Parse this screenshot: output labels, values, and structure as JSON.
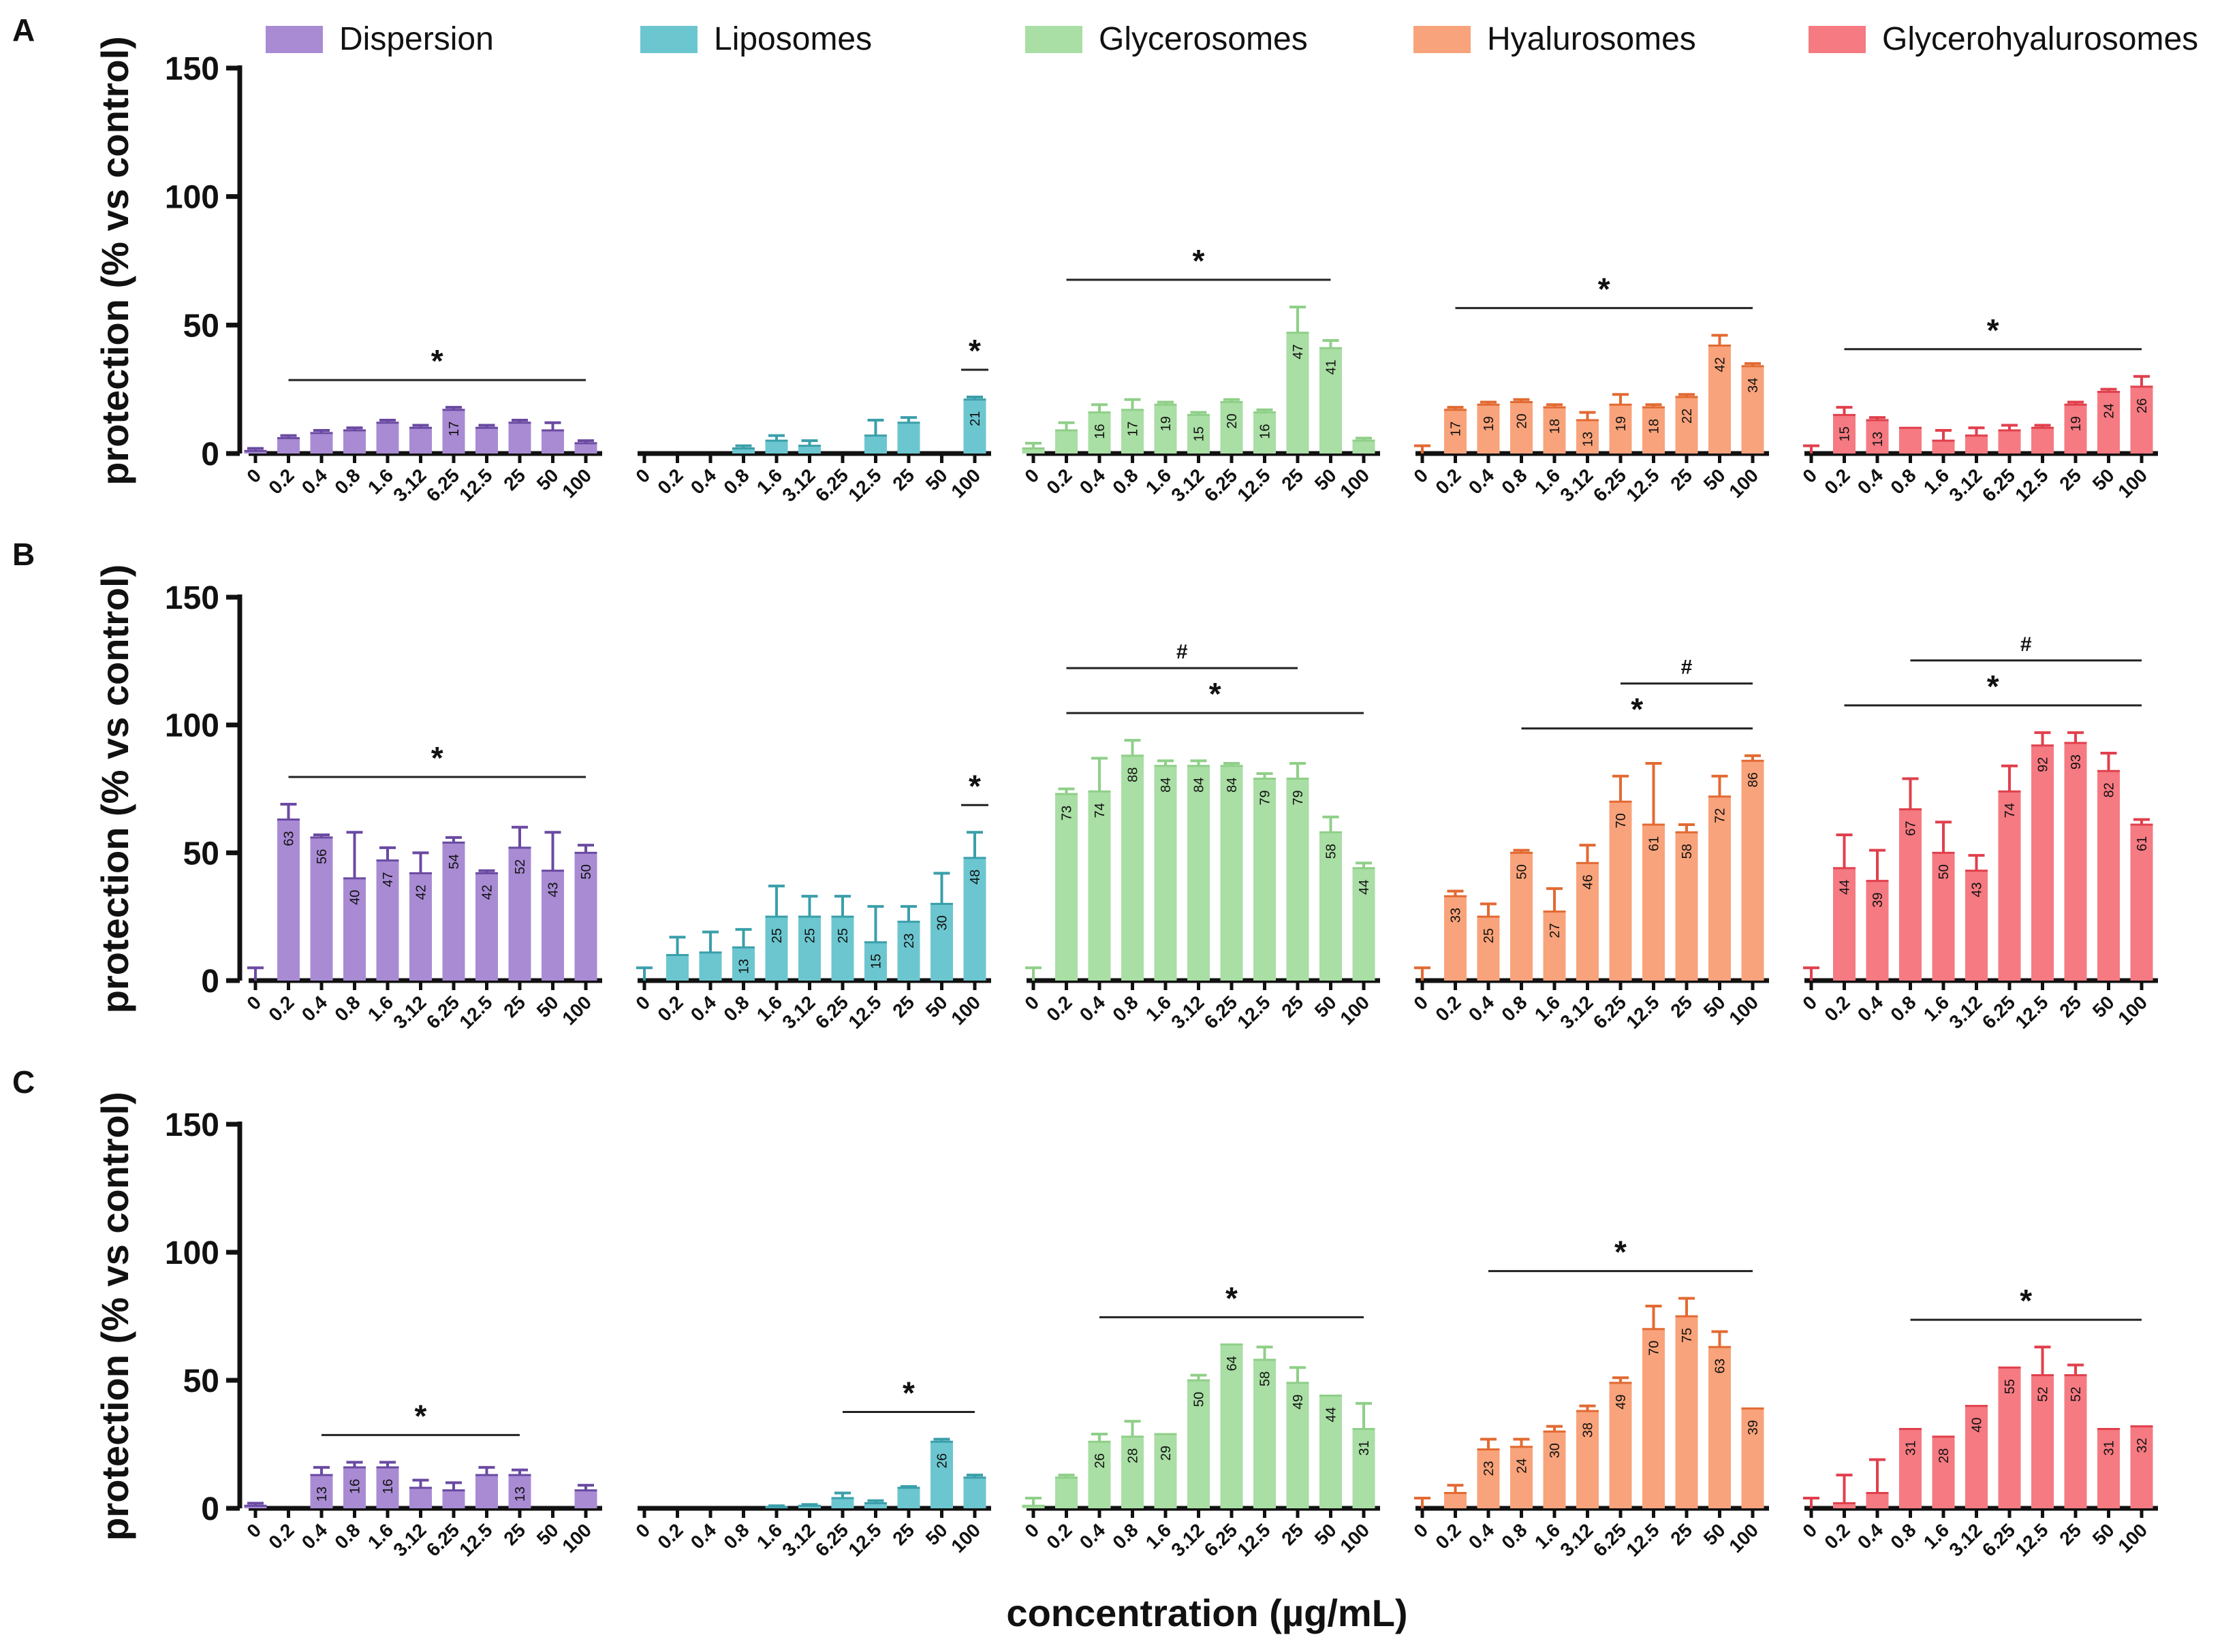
{
  "colors": {
    "Dispersion": "#a98bd4",
    "Liposomes": "#6cc6cf",
    "Glycerosomes": "#a9dea4",
    "Hyalurosomes": "#f8a37b",
    "Glycerohyalurosomes": "#f57a82",
    "Dispersion_err": "#6a4aa2",
    "Liposomes_err": "#3a9faa",
    "Glycerosomes_err": "#8fcf88",
    "Hyalurosomes_err": "#e26a32",
    "Glycerohyalurosomes_err": "#e0404c"
  },
  "legend": [
    "Dispersion",
    "Liposomes",
    "Glycerosomes",
    "Hyalurosomes",
    "Glycerohyalurosomes"
  ],
  "xlabel": "concentration (µg/mL)",
  "chart_data": [
    {
      "type": "bar",
      "panel": "A",
      "ylabel": "protection (% vs control)",
      "ylim": [
        0,
        150
      ],
      "yticks": [
        0,
        50,
        100,
        150
      ],
      "categories": [
        "0",
        "0.2",
        "0.4",
        "0.8",
        "1.6",
        "3.12",
        "6.25",
        "12.5",
        "25",
        "50",
        "100"
      ],
      "series": [
        {
          "name": "Dispersion",
          "values": [
            1,
            6,
            8,
            9,
            12,
            10,
            17,
            10,
            12,
            9,
            4
          ],
          "errors": [
            1,
            1,
            1,
            1,
            1,
            1,
            1,
            1,
            1,
            3,
            1
          ],
          "labels": [
            "",
            "",
            "",
            "",
            "",
            "",
            "17",
            "",
            "",
            "",
            ""
          ],
          "annotations": [
            {
              "text": "*",
              "from": 1,
              "to": 10
            }
          ]
        },
        {
          "name": "Liposomes",
          "values": [
            0,
            0,
            0,
            2,
            5,
            3,
            0,
            7,
            12,
            0,
            21
          ],
          "errors": [
            0,
            0,
            0,
            1,
            2,
            2,
            0,
            6,
            2,
            0,
            1
          ],
          "labels": [
            "",
            "",
            "",
            "",
            "",
            "",
            "",
            "",
            "",
            "",
            "21"
          ],
          "annotations": [
            {
              "text": "*",
              "from": 10,
              "to": 10
            }
          ]
        },
        {
          "name": "Glycerosomes",
          "values": [
            2,
            9,
            16,
            17,
            19,
            15,
            20,
            16,
            47,
            41,
            5
          ],
          "errors": [
            2,
            3,
            3,
            4,
            1,
            1,
            1,
            1,
            10,
            3,
            1
          ],
          "labels": [
            "",
            "",
            "16",
            "17",
            "19",
            "15",
            "20",
            "16",
            "47",
            "41",
            ""
          ],
          "annotations": [
            {
              "text": "*",
              "from": 1,
              "to": 9
            }
          ]
        },
        {
          "name": "Hyalurosomes",
          "values": [
            0,
            17,
            19,
            20,
            18,
            13,
            19,
            18,
            22,
            42,
            34
          ],
          "errors": [
            3,
            1,
            1,
            1,
            1,
            3,
            4,
            1,
            1,
            4,
            1
          ],
          "labels": [
            "",
            "17",
            "19",
            "20",
            "18",
            "13",
            "19",
            "18",
            "22",
            "42",
            "34"
          ],
          "annotations": [
            {
              "text": "*",
              "from": 1,
              "to": 10
            }
          ]
        },
        {
          "name": "Glycerohyalurosomes",
          "values": [
            0,
            15,
            13,
            10,
            5,
            7,
            9,
            10,
            19,
            24,
            26
          ],
          "errors": [
            3,
            3,
            1,
            0,
            4,
            3,
            2,
            1,
            1,
            1,
            4
          ],
          "labels": [
            "",
            "15",
            "13",
            "",
            "",
            "",
            "",
            "",
            "19",
            "24",
            "26"
          ],
          "annotations": [
            {
              "text": "*",
              "from": 1,
              "to": 10
            }
          ]
        }
      ]
    },
    {
      "type": "bar",
      "panel": "B",
      "ylabel": "protection (% vs control)",
      "ylim": [
        0,
        150
      ],
      "yticks": [
        0,
        50,
        100,
        150
      ],
      "categories": [
        "0",
        "0.2",
        "0.4",
        "0.8",
        "1.6",
        "3.12",
        "6.25",
        "12.5",
        "25",
        "50",
        "100"
      ],
      "series": [
        {
          "name": "Dispersion",
          "values": [
            0,
            63,
            56,
            40,
            47,
            42,
            54,
            42,
            52,
            43,
            50
          ],
          "errors": [
            5,
            6,
            1,
            18,
            5,
            8,
            2,
            1,
            8,
            15,
            3
          ],
          "labels": [
            "",
            "63",
            "56",
            "40",
            "47",
            "42",
            "54",
            "42",
            "52",
            "43",
            "50"
          ],
          "annotations": [
            {
              "text": "*",
              "from": 1,
              "to": 10
            }
          ]
        },
        {
          "name": "Liposomes",
          "values": [
            0,
            10,
            11,
            13,
            25,
            25,
            25,
            15,
            23,
            30,
            48
          ],
          "errors": [
            5,
            7,
            8,
            7,
            12,
            8,
            8,
            14,
            6,
            12,
            10
          ],
          "labels": [
            "",
            "",
            "",
            "13",
            "25",
            "25",
            "25",
            "15",
            "23",
            "30",
            "48"
          ],
          "annotations": [
            {
              "text": "*",
              "from": 10,
              "to": 10
            }
          ]
        },
        {
          "name": "Glycerosomes",
          "values": [
            0,
            73,
            74,
            88,
            84,
            84,
            84,
            79,
            79,
            58,
            44
          ],
          "errors": [
            5,
            2,
            13,
            6,
            2,
            2,
            1,
            2,
            6,
            6,
            2
          ],
          "labels": [
            "",
            "73",
            "74",
            "88",
            "84",
            "84",
            "84",
            "79",
            "79",
            "58",
            "44"
          ],
          "annotations": [
            {
              "text": "*",
              "from": 1,
              "to": 10
            },
            {
              "text": "#",
              "from": 1,
              "to": 8
            }
          ]
        },
        {
          "name": "Hyalurosomes",
          "values": [
            0,
            33,
            25,
            50,
            27,
            46,
            70,
            61,
            58,
            72,
            86
          ],
          "errors": [
            5,
            2,
            5,
            1,
            9,
            7,
            10,
            24,
            3,
            8,
            2
          ],
          "labels": [
            "",
            "33",
            "25",
            "50",
            "27",
            "46",
            "70",
            "61",
            "58",
            "72",
            "86"
          ],
          "annotations": [
            {
              "text": "*",
              "from": 3,
              "to": 10
            },
            {
              "text": "#",
              "from": 6,
              "to": 10
            }
          ]
        },
        {
          "name": "Glycerohyalurosomes",
          "values": [
            0,
            44,
            39,
            67,
            50,
            43,
            74,
            92,
            93,
            82,
            61
          ],
          "errors": [
            5,
            13,
            12,
            12,
            12,
            6,
            10,
            5,
            4,
            7,
            2
          ],
          "labels": [
            "",
            "44",
            "39",
            "67",
            "50",
            "43",
            "74",
            "92",
            "93",
            "82",
            "61"
          ],
          "annotations": [
            {
              "text": "*",
              "from": 1,
              "to": 10
            },
            {
              "text": "#",
              "from": 3,
              "to": 10
            }
          ]
        }
      ]
    },
    {
      "type": "bar",
      "panel": "C",
      "ylabel": "protection (% vs control)",
      "ylim": [
        0,
        150
      ],
      "yticks": [
        0,
        50,
        100,
        150
      ],
      "categories": [
        "0",
        "0.2",
        "0.4",
        "0.8",
        "1.6",
        "3.12",
        "6.25",
        "12.5",
        "25",
        "50",
        "100"
      ],
      "series": [
        {
          "name": "Dispersion",
          "values": [
            1,
            0,
            13,
            16,
            16,
            8,
            7,
            13,
            13,
            0,
            7
          ],
          "errors": [
            1,
            0,
            3,
            2,
            2,
            3,
            3,
            3,
            2,
            0,
            2
          ],
          "labels": [
            "",
            "",
            "13",
            "16",
            "16",
            "",
            "",
            "",
            "13",
            "",
            ""
          ],
          "annotations": [
            {
              "text": "*",
              "from": 2,
              "to": 8
            }
          ]
        },
        {
          "name": "Liposomes",
          "values": [
            0,
            0,
            0,
            0,
            0.5,
            1,
            4,
            2,
            8,
            26,
            12
          ],
          "errors": [
            0,
            0,
            0,
            0,
            0.5,
            0.5,
            2,
            1,
            0.5,
            1,
            1
          ],
          "labels": [
            "",
            "",
            "",
            "",
            "",
            "",
            "",
            "",
            "",
            "26",
            ""
          ],
          "annotations": [
            {
              "text": "*",
              "from": 6,
              "to": 10
            }
          ]
        },
        {
          "name": "Glycerosomes",
          "values": [
            1,
            12,
            26,
            28,
            29,
            50,
            64,
            58,
            49,
            44,
            31
          ],
          "errors": [
            3,
            1,
            3,
            6,
            0,
            2,
            0,
            5,
            6,
            0,
            10
          ],
          "labels": [
            "",
            "",
            "26",
            "28",
            "29",
            "50",
            "64",
            "58",
            "49",
            "44",
            "31"
          ],
          "annotations": [
            {
              "text": "*",
              "from": 2,
              "to": 10
            }
          ]
        },
        {
          "name": "Hyalurosomes",
          "values": [
            0,
            6,
            23,
            24,
            30,
            38,
            49,
            70,
            75,
            63,
            39
          ],
          "errors": [
            4,
            3,
            4,
            3,
            2,
            2,
            2,
            9,
            7,
            6,
            0
          ],
          "labels": [
            "",
            "",
            "23",
            "24",
            "30",
            "38",
            "49",
            "70",
            "75",
            "63",
            "39"
          ],
          "annotations": [
            {
              "text": "*",
              "from": 2,
              "to": 10
            }
          ]
        },
        {
          "name": "Glycerohyalurosomes",
          "values": [
            0,
            2,
            6,
            31,
            28,
            40,
            55,
            52,
            52,
            31,
            32
          ],
          "errors": [
            4,
            11,
            13,
            0,
            0,
            0,
            0,
            11,
            4,
            0,
            0
          ],
          "labels": [
            "",
            "",
            "",
            "31",
            "28",
            "40",
            "55",
            "52",
            "52",
            "31",
            "32"
          ],
          "annotations": [
            {
              "text": "*",
              "from": 3,
              "to": 10
            }
          ]
        }
      ]
    }
  ]
}
